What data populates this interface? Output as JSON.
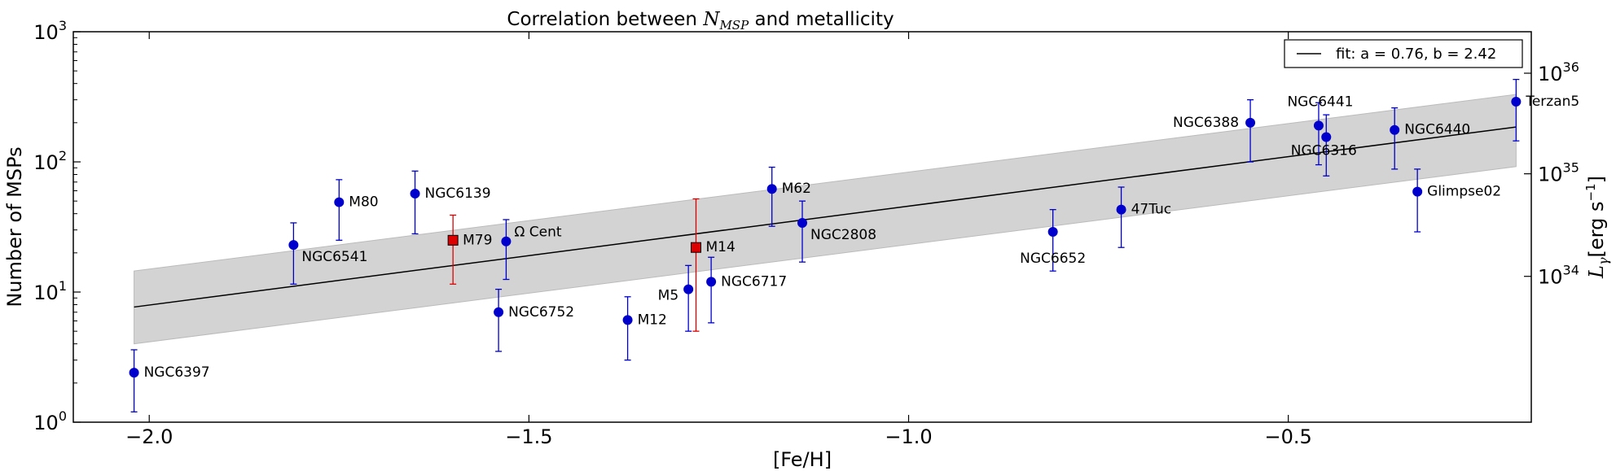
{
  "chart_data": {
    "type": "scatter",
    "title_prefix": "Correlation between ",
    "title_math_base": "N",
    "title_math_sub": "MSP",
    "title_suffix": " and metallicity",
    "xlabel": "[Fe/H]",
    "ylabel": "Number of MSPs",
    "right_ylabel_symbol": "L",
    "right_ylabel_sub": "γ",
    "right_ylabel_units_pre": "[erg s",
    "right_ylabel_units_sup": "−1",
    "right_ylabel_units_post": "]",
    "xlim": [
      -2.1,
      -0.18
    ],
    "ylim": [
      1,
      1000
    ],
    "yscale": "log",
    "x_ticks": [
      {
        "value": -2.0,
        "label": "−2.0"
      },
      {
        "value": -1.5,
        "label": "−1.5"
      },
      {
        "value": -1.0,
        "label": "−1.0"
      },
      {
        "value": -0.5,
        "label": "−0.5"
      }
    ],
    "y_ticks": [
      {
        "value": 1,
        "base": "10",
        "exp": "0"
      },
      {
        "value": 10,
        "base": "10",
        "exp": "1"
      },
      {
        "value": 100,
        "base": "10",
        "exp": "2"
      },
      {
        "value": 1000,
        "base": "10",
        "exp": "3"
      }
    ],
    "right_ticks": [
      {
        "value": 13.2,
        "base": "10",
        "exp": "34"
      },
      {
        "value": 81.0,
        "base": "10",
        "exp": "35"
      },
      {
        "value": 480.0,
        "base": "10",
        "exp": "36"
      }
    ],
    "legend": {
      "label": "fit: a = 0.76, b = 2.42",
      "placement": "top-right"
    },
    "fit": {
      "a": 0.76,
      "b": 2.42,
      "x_range": [
        -2.02,
        -0.2
      ],
      "band_lower": [
        4.0,
        92.0
      ],
      "band_upper": [
        14.5,
        330.0
      ]
    },
    "series": [
      {
        "name": "blue",
        "color": "#0000cc",
        "marker": "circle",
        "points": [
          {
            "label": "NGC6397",
            "x": -2.02,
            "y": 2.4,
            "lo": 1.2,
            "hi": 3.6,
            "label_pos": "right"
          },
          {
            "label": "NGC6541",
            "x": -1.81,
            "y": 23,
            "lo": 11.5,
            "hi": 34,
            "label_pos": "right-below"
          },
          {
            "label": "M80",
            "x": -1.75,
            "y": 49,
            "lo": 25,
            "hi": 73,
            "label_pos": "right"
          },
          {
            "label": "NGC6139",
            "x": -1.65,
            "y": 57,
            "lo": 28,
            "hi": 85,
            "label_pos": "right"
          },
          {
            "label": "Ω Cent",
            "x": -1.53,
            "y": 24.5,
            "lo": 12.5,
            "hi": 36,
            "label_pos": "right-above"
          },
          {
            "label": "NGC6752",
            "x": -1.54,
            "y": 7.0,
            "lo": 3.5,
            "hi": 10.5,
            "label_pos": "right"
          },
          {
            "label": "M12",
            "x": -1.37,
            "y": 6.1,
            "lo": 3.0,
            "hi": 9.2,
            "label_pos": "right"
          },
          {
            "label": "M5",
            "x": -1.29,
            "y": 10.5,
            "lo": 5.0,
            "hi": 16,
            "label_pos": "left-below"
          },
          {
            "label": "NGC6717",
            "x": -1.26,
            "y": 12,
            "lo": 5.8,
            "hi": 18.5,
            "label_pos": "right"
          },
          {
            "label": "M62",
            "x": -1.18,
            "y": 62,
            "lo": 32,
            "hi": 91,
            "label_pos": "right"
          },
          {
            "label": "NGC2808",
            "x": -1.14,
            "y": 34,
            "lo": 17,
            "hi": 50,
            "label_pos": "right-below"
          },
          {
            "label": "NGC6652",
            "x": -0.81,
            "y": 29,
            "lo": 14.5,
            "hi": 43,
            "label_pos": "below"
          },
          {
            "label": "47Tuc",
            "x": -0.72,
            "y": 43,
            "lo": 22,
            "hi": 64,
            "label_pos": "right"
          },
          {
            "label": "NGC6388",
            "x": -0.55,
            "y": 200,
            "lo": 100,
            "hi": 300,
            "label_pos": "left"
          },
          {
            "label": "NGC6441",
            "x": -0.46,
            "y": 190,
            "lo": 95,
            "hi": 285,
            "label_pos": "above"
          },
          {
            "label": "NGC6316",
            "x": -0.45,
            "y": 155,
            "lo": 78,
            "hi": 230,
            "label_pos": "below"
          },
          {
            "label": "NGC6440",
            "x": -0.36,
            "y": 176,
            "lo": 88,
            "hi": 260,
            "label_pos": "right"
          },
          {
            "label": "Glimpse02",
            "x": -0.33,
            "y": 59,
            "lo": 29,
            "hi": 88,
            "label_pos": "right"
          },
          {
            "label": "Terzan5",
            "x": -0.2,
            "y": 290,
            "lo": 145,
            "hi": 430,
            "label_pos": "right"
          }
        ]
      },
      {
        "name": "red",
        "color": "#dd0000",
        "marker": "square",
        "points": [
          {
            "label": "M79",
            "x": -1.6,
            "y": 25,
            "lo": 11.5,
            "hi": 39,
            "label_pos": "right"
          },
          {
            "label": "M14",
            "x": -1.28,
            "y": 22,
            "lo": 5.0,
            "hi": 52,
            "label_pos": "right"
          }
        ]
      }
    ]
  }
}
